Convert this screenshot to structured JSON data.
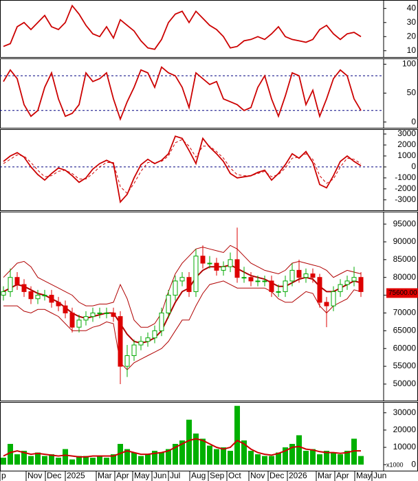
{
  "chart_data": [
    {
      "type": "line",
      "ylim": [
        5.5,
        46
      ],
      "yticks": [
        10,
        20,
        30,
        40
      ],
      "series": [
        {
          "color": "#cc0000",
          "values": [
            13,
            15,
            27,
            30,
            25,
            30,
            35,
            27,
            25,
            30,
            42,
            36,
            28,
            22,
            20,
            27,
            19,
            32,
            28,
            24,
            17,
            12,
            11,
            18,
            30,
            36,
            38,
            30,
            38,
            33,
            28,
            25,
            20,
            12,
            13,
            17,
            18,
            20,
            18,
            22,
            27,
            20,
            18,
            17,
            16,
            18,
            25,
            28,
            22,
            18,
            22,
            23,
            20
          ]
        }
      ]
    },
    {
      "type": "line",
      "ylim": [
        -10,
        110
      ],
      "yticks": [
        0,
        50,
        100
      ],
      "reference_lines": [
        20,
        80
      ],
      "series": [
        {
          "color": "#cc0000",
          "values": [
            70,
            90,
            75,
            30,
            10,
            20,
            60,
            85,
            40,
            10,
            15,
            30,
            85,
            70,
            75,
            85,
            40,
            5,
            35,
            60,
            90,
            85,
            60,
            95,
            85,
            80,
            60,
            25,
            85,
            75,
            65,
            70,
            40,
            35,
            30,
            20,
            25,
            60,
            80,
            40,
            10,
            45,
            85,
            80,
            30,
            55,
            10,
            40,
            75,
            90,
            80,
            40,
            20
          ]
        }
      ]
    },
    {
      "type": "line",
      "ylim": [
        -3950,
        3440
      ],
      "yticks": [
        3000,
        2000,
        1000,
        0,
        -1000,
        -2000,
        -3000
      ],
      "reference_lines": [
        0
      ],
      "series": [
        {
          "color": "#cc0000",
          "values": [
            500,
            1000,
            1300,
            900,
            0,
            -700,
            -1200,
            -600,
            -100,
            -300,
            -800,
            -1400,
            -1000,
            -200,
            300,
            600,
            300,
            -3200,
            -2500,
            -1000,
            200,
            700,
            300,
            600,
            1200,
            2800,
            2600,
            1500,
            300,
            2600,
            1800,
            1200,
            500,
            -600,
            -1000,
            -900,
            -800,
            -500,
            -300,
            -1200,
            -600,
            200,
            1200,
            800,
            1400,
            400,
            -1600,
            -1900,
            -800,
            500,
            1000,
            500,
            100
          ]
        },
        {
          "color": "#cc0000",
          "dash": true,
          "values": [
            300,
            700,
            1100,
            1000,
            400,
            -300,
            -900,
            -800,
            -400,
            -300,
            -600,
            -1100,
            -1100,
            -600,
            0,
            400,
            400,
            -1800,
            -2400,
            -1500,
            -400,
            400,
            400,
            500,
            1000,
            2200,
            2500,
            1900,
            900,
            1900,
            1900,
            1400,
            800,
            -100,
            -700,
            -800,
            -800,
            -600,
            -400,
            -900,
            -700,
            -100,
            800,
            900,
            1200,
            700,
            -800,
            -1500,
            -1100,
            0,
            800,
            700,
            300
          ]
        }
      ]
    },
    {
      "type": "candlestick",
      "ylim": [
        45350,
        98500
      ],
      "yticks": [
        50000,
        55000,
        60000,
        65000,
        70000,
        75000,
        80000,
        85000,
        90000,
        95000
      ],
      "up_color": "#00a800",
      "down_color": "#dd0000",
      "open": [
        75000,
        76000,
        80000,
        78000,
        76000,
        74000,
        75000,
        75000,
        73000,
        72000,
        70000,
        66000,
        68000,
        69000,
        70000,
        70000,
        70000,
        69000,
        55000,
        58000,
        61000,
        62000,
        63000,
        65000,
        70000,
        75000,
        79000,
        80000,
        76000,
        86000,
        84000,
        84000,
        82000,
        83000,
        85000,
        80000,
        80000,
        79000,
        79000,
        79000,
        76000,
        76000,
        79000,
        82000,
        80000,
        81000,
        80000,
        73000,
        72000,
        76000,
        78000,
        79000,
        80000
      ],
      "high": [
        77500,
        82500,
        81500,
        79500,
        77500,
        76500,
        76500,
        76500,
        74500,
        73500,
        71500,
        69500,
        70500,
        71500,
        71500,
        71500,
        71500,
        70500,
        61000,
        62500,
        63500,
        64500,
        66500,
        71500,
        76500,
        80500,
        81500,
        81500,
        88000,
        89000,
        86000,
        85500,
        84500,
        87000,
        94000,
        83000,
        81500,
        80500,
        80500,
        80500,
        78000,
        80500,
        84000,
        85000,
        82500,
        82500,
        81000,
        74500,
        77500,
        79500,
        80500,
        83000,
        81500
      ],
      "low": [
        73500,
        74500,
        76500,
        74500,
        72500,
        72500,
        73500,
        71500,
        70500,
        68500,
        64500,
        64500,
        66500,
        67500,
        68500,
        68500,
        67500,
        50000,
        52000,
        56500,
        59500,
        60500,
        61500,
        63500,
        68500,
        73500,
        77500,
        74500,
        74500,
        82500,
        82500,
        80500,
        80500,
        81500,
        78500,
        78500,
        77500,
        77500,
        77500,
        74500,
        74500,
        74500,
        77500,
        78500,
        78500,
        78500,
        71500,
        66000,
        70500,
        74500,
        76500,
        77500,
        74500
      ],
      "close": [
        76000,
        80000,
        78000,
        76000,
        74000,
        75000,
        75000,
        73000,
        72000,
        70000,
        66000,
        68000,
        69000,
        70000,
        70000,
        70000,
        69000,
        55000,
        58000,
        61000,
        62000,
        63000,
        65000,
        70000,
        75000,
        79000,
        80000,
        76000,
        86000,
        84000,
        84000,
        82000,
        83000,
        85000,
        80000,
        80000,
        79000,
        79000,
        79000,
        76000,
        76000,
        79000,
        82000,
        80000,
        81000,
        80000,
        73000,
        72000,
        76000,
        78000,
        79000,
        80000,
        76000
      ],
      "series": [
        {
          "color": "#b00000",
          "values": [
            80000,
            82000,
            84000,
            84500,
            83000,
            80000,
            79000,
            78000,
            77000,
            76000,
            75000,
            73000,
            72000,
            72000,
            72500,
            72500,
            73000,
            78000,
            74000,
            68000,
            66000,
            66000,
            67000,
            70000,
            76000,
            81000,
            84000,
            86000,
            88000,
            88500,
            88000,
            87500,
            87000,
            89000,
            88000,
            86000,
            84000,
            83000,
            82000,
            81500,
            81000,
            82000,
            84000,
            84500,
            84000,
            83500,
            83000,
            82000,
            80000,
            81000,
            82000,
            81500,
            81000
          ]
        },
        {
          "color": "#b00000",
          "width": 2,
          "values": [
            76000,
            77000,
            78000,
            77500,
            76500,
            75500,
            75000,
            74000,
            73000,
            71500,
            70000,
            69000,
            68500,
            69000,
            69500,
            70000,
            70000,
            67000,
            64000,
            62000,
            61500,
            62000,
            63000,
            65000,
            69000,
            73000,
            76000,
            77000,
            80000,
            82000,
            83000,
            83000,
            83000,
            83500,
            82500,
            81500,
            80500,
            80000,
            79500,
            78500,
            77500,
            77500,
            78500,
            79500,
            80000,
            79500,
            77500,
            76000,
            76000,
            77000,
            78000,
            79000,
            78500
          ]
        },
        {
          "color": "#b00000",
          "values": [
            72000,
            72000,
            72000,
            70500,
            70000,
            71000,
            71000,
            70000,
            69000,
            67000,
            65000,
            65000,
            65000,
            66000,
            66500,
            67500,
            67000,
            56000,
            54000,
            56000,
            57000,
            58000,
            59000,
            60000,
            62000,
            65000,
            68000,
            68000,
            72000,
            75500,
            78000,
            78500,
            79000,
            78000,
            77000,
            77000,
            77000,
            77000,
            77000,
            76000,
            74000,
            73000,
            73000,
            74500,
            76000,
            75500,
            72000,
            70000,
            72000,
            73000,
            74000,
            76500,
            76000
          ]
        }
      ],
      "last_value": {
        "value": 75600,
        "label": "75600.00"
      }
    },
    {
      "type": "bar",
      "ylim": [
        -3500,
        36250
      ],
      "yticks": [
        0,
        10000,
        20000,
        30000
      ],
      "unit_label": "x1000",
      "color": "#00b000",
      "values": [
        4000,
        12000,
        6000,
        8000,
        5000,
        7000,
        5000,
        6000,
        4000,
        9000,
        3000,
        5000,
        5000,
        4000,
        5000,
        4000,
        6000,
        12000,
        9000,
        7000,
        5000,
        6000,
        8000,
        7000,
        9000,
        12000,
        14000,
        26000,
        18000,
        15000,
        11000,
        9000,
        10000,
        8000,
        34000,
        14000,
        8000,
        6000,
        5000,
        5000,
        7000,
        10000,
        12000,
        17000,
        8000,
        9000,
        6000,
        8000,
        7000,
        6000,
        8000,
        15000,
        5000
      ],
      "series": [
        {
          "color": "#cc0000",
          "width": 2,
          "values": [
            5000,
            7000,
            8000,
            7000,
            6000,
            6500,
            6000,
            5500,
            5000,
            5500,
            5000,
            4500,
            4500,
            5000,
            5000,
            5000,
            5000,
            6500,
            8000,
            7000,
            6000,
            6000,
            6500,
            7000,
            8000,
            10000,
            12000,
            14000,
            15000,
            14000,
            12000,
            10000,
            9000,
            10000,
            14000,
            12000,
            9000,
            7000,
            6000,
            5500,
            6500,
            8000,
            10000,
            10500,
            9000,
            8500,
            7500,
            7000,
            7000,
            6500,
            7000,
            8000,
            8000
          ]
        }
      ],
      "xlim": [
        0,
        55.8
      ],
      "xticks": [
        {
          "value": 0,
          "label": "p"
        },
        {
          "value": 3.8,
          "label": "Nov"
        },
        {
          "value": 6.6,
          "label": "Dec"
        },
        {
          "value": 9.5,
          "label": "2025"
        },
        {
          "value": 14.0,
          "label": "Mar"
        },
        {
          "value": 16.7,
          "label": "Apr"
        },
        {
          "value": 19.3,
          "label": "May"
        },
        {
          "value": 22.1,
          "label": "Jun"
        },
        {
          "value": 24.5,
          "label": "Jul"
        },
        {
          "value": 27.6,
          "label": "Aug"
        },
        {
          "value": 30.3,
          "label": "Sep"
        },
        {
          "value": 33.0,
          "label": "Oct"
        },
        {
          "value": 36.2,
          "label": "Nov"
        },
        {
          "value": 39.0,
          "label": "Dec"
        },
        {
          "value": 41.8,
          "label": "2026"
        },
        {
          "value": 46.0,
          "label": "Mar"
        },
        {
          "value": 48.7,
          "label": "Apr"
        },
        {
          "value": 51.6,
          "label": "May"
        },
        {
          "value": 54.1,
          "label": "Jun"
        }
      ]
    }
  ]
}
